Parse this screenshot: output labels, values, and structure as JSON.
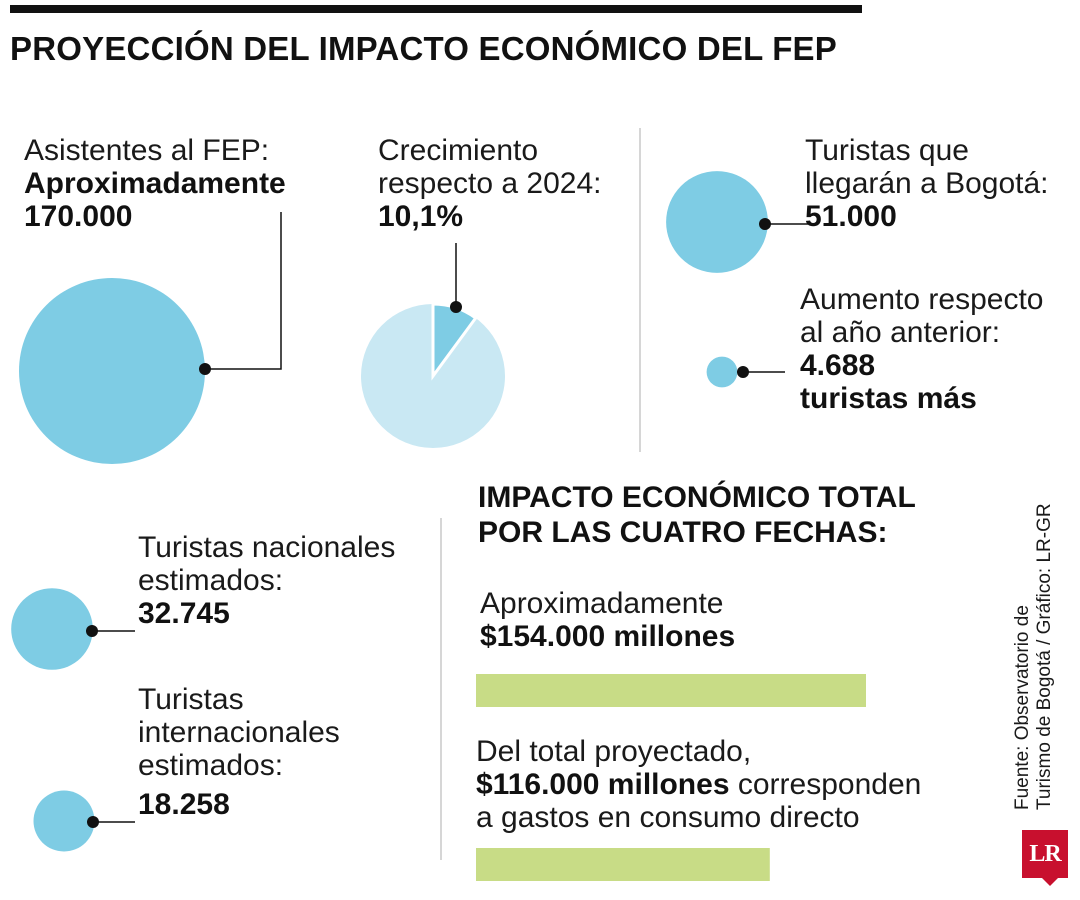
{
  "title": "PROYECCIÓN DEL IMPACTO ECONÓMICO DEL FEP",
  "asistentes": {
    "label": "Asistentes al FEP:",
    "bold1": "Aproximadamente",
    "bold2": "170.000"
  },
  "crecimiento": {
    "label1": "Crecimiento",
    "label2": "respecto a 2024:",
    "value": "10,1%"
  },
  "turistas_bogota": {
    "label1": "Turistas que",
    "label2": "llegarán a Bogotá:",
    "value": "51.000"
  },
  "aumento": {
    "label1": "Aumento respecto",
    "label2": "al año anterior:",
    "value1": "4.688",
    "value2": "turistas más"
  },
  "nacionales": {
    "label1": "Turistas nacionales",
    "label2": "estimados:",
    "value": "32.745"
  },
  "internacionales": {
    "label1": "Turistas",
    "label2": "internacionales",
    "label3": "estimados:",
    "value": "18.258"
  },
  "impacto": {
    "title1": "IMPACTO ECONÓMICO TOTAL",
    "title2": "POR LAS CUATRO FECHAS:",
    "total_label": "Aproximadamente",
    "total_value": "$154.000 millones",
    "consumo_label1": "Del total proyectado,",
    "consumo_value": "$116.000 millones",
    "consumo_label2": " corresponden",
    "consumo_label3": "a gastos en consumo directo"
  },
  "source": {
    "line1": "Fuente: Observatorio de",
    "line2": "Turismo de Bogotá / Gráfico: LR-GR"
  },
  "logo": "LR",
  "colors": {
    "bubble": "#7ecce4",
    "pie_light": "#c9e8f3",
    "pie_slice": "#7ecce4",
    "bar": "#c8dc86",
    "divider": "#c8c8c8",
    "logo": "#c8102e"
  },
  "chart_data": [
    {
      "type": "bubble",
      "bubbles": [
        {
          "label": "Asistentes al FEP",
          "value": 170000
        },
        {
          "label": "Turistas que llegarán a Bogotá",
          "value": 51000
        },
        {
          "label": "Aumento respecto al año anterior",
          "value": 4688
        },
        {
          "label": "Turistas nacionales estimados",
          "value": 32745
        },
        {
          "label": "Turistas internacionales estimados",
          "value": 18258
        }
      ]
    },
    {
      "type": "pie",
      "label": "Crecimiento respecto a 2024",
      "slices": [
        {
          "value": 10.1
        },
        {
          "value": 89.9
        }
      ]
    },
    {
      "type": "bar",
      "categories": [
        "Aproximadamente",
        "Del total proyectado"
      ],
      "values": [
        154000,
        116000
      ],
      "unit": "millones"
    }
  ]
}
